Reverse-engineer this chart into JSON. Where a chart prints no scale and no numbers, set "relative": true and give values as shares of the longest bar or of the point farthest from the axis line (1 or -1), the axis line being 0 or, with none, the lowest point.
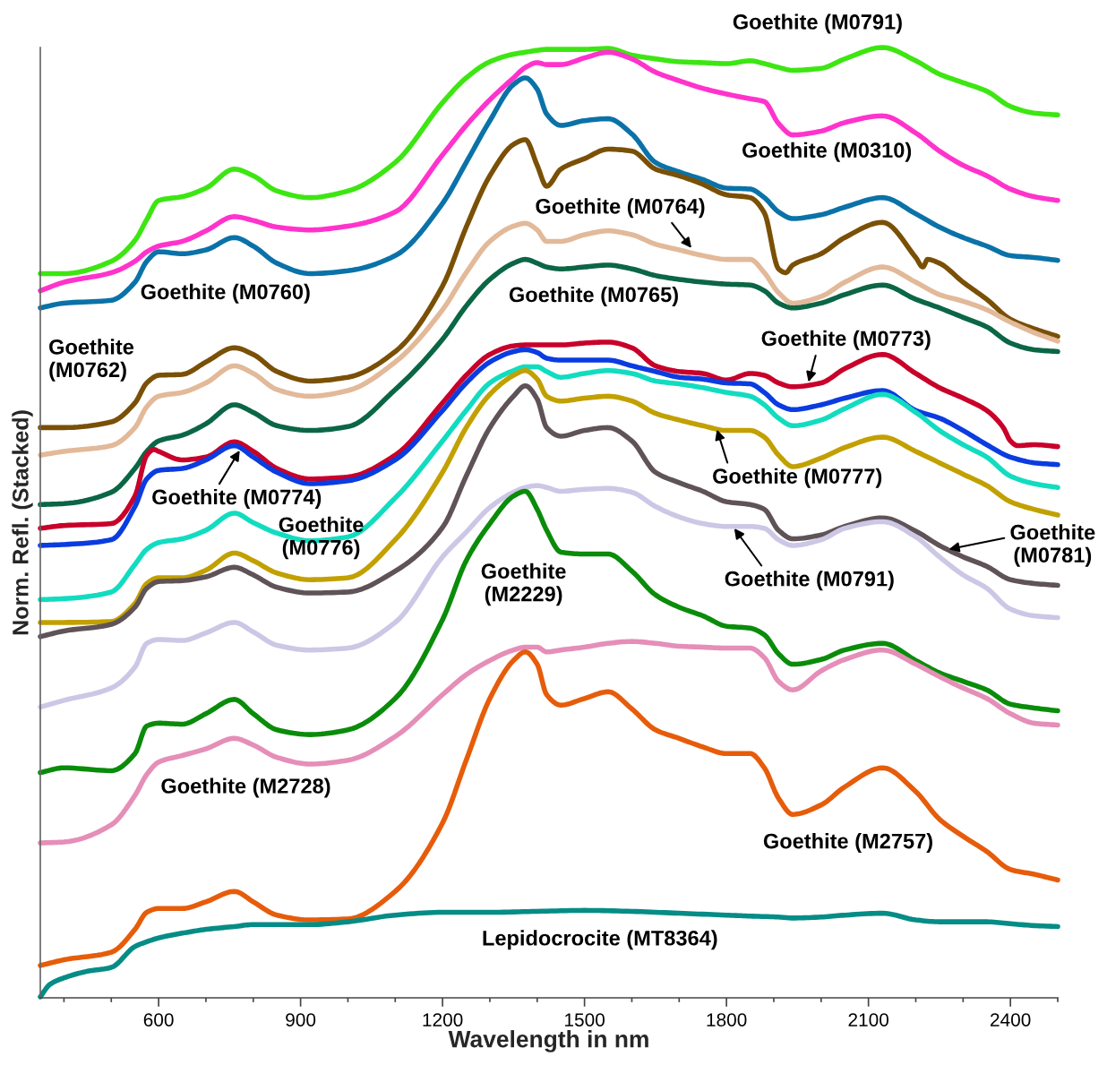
{
  "chart_data": {
    "type": "line",
    "xlabel": "Wavelength in nm",
    "ylabel": "Norm. Refl. (Stacked)",
    "relative": true,
    "xlim": [
      350,
      2500
    ],
    "xticks": [
      {
        "value": 400,
        "label": null
      },
      {
        "value": 500,
        "label": null
      },
      600,
      {
        "value": 700,
        "label": null
      },
      {
        "value": 800,
        "label": null
      },
      900,
      {
        "value": 1000,
        "label": null
      },
      {
        "value": 1100,
        "label": null
      },
      1200,
      {
        "value": 1300,
        "label": null
      },
      {
        "value": 1400,
        "label": null
      },
      1500,
      {
        "value": 1600,
        "label": null
      },
      {
        "value": 1700,
        "label": null
      },
      1800,
      {
        "value": 1900,
        "label": null
      },
      {
        "value": 2000,
        "label": null
      },
      2100,
      {
        "value": 2200,
        "label": null
      },
      {
        "value": 2300,
        "label": null
      },
      2400,
      {
        "value": 2500,
        "label": null
      }
    ],
    "series": [
      {
        "name": "Goethite (M0791)",
        "color": "#3de612",
        "x": [
          350,
          400,
          500,
          550,
          575,
          600,
          650,
          700,
          760,
          800,
          850,
          920,
          1000,
          1100,
          1200,
          1250,
          1300,
          1350,
          1375,
          1400,
          1420,
          1450,
          1500,
          1550,
          1600,
          1650,
          1700,
          1750,
          1800,
          1850,
          1880,
          1910,
          1940,
          2000,
          2050,
          2130,
          2200,
          2250,
          2300,
          2350,
          2400,
          2450,
          2500
        ],
        "values": [
          0.762,
          0.762,
          0.775,
          0.797,
          0.819,
          0.839,
          0.843,
          0.852,
          0.872,
          0.865,
          0.849,
          0.842,
          0.849,
          0.879,
          0.942,
          0.968,
          0.985,
          0.993,
          0.995,
          0.997,
          0.998,
          0.998,
          0.998,
          0.999,
          0.992,
          0.988,
          0.985,
          0.984,
          0.983,
          0.986,
          0.983,
          0.979,
          0.976,
          0.978,
          0.988,
          1.0,
          0.986,
          0.972,
          0.963,
          0.954,
          0.938,
          0.931,
          0.929
        ]
      },
      {
        "name": "Goethite (M0310)",
        "color": "#ff33cc",
        "x": [
          350,
          400,
          500,
          550,
          575,
          600,
          650,
          700,
          760,
          800,
          850,
          920,
          1000,
          1100,
          1200,
          1250,
          1300,
          1350,
          1375,
          1400,
          1420,
          1450,
          1500,
          1550,
          1600,
          1650,
          1700,
          1750,
          1800,
          1850,
          1880,
          1910,
          1940,
          2000,
          2050,
          2130,
          2200,
          2250,
          2300,
          2350,
          2400,
          2450,
          2500
        ],
        "values": [
          0.744,
          0.753,
          0.763,
          0.775,
          0.785,
          0.791,
          0.796,
          0.807,
          0.822,
          0.818,
          0.811,
          0.808,
          0.812,
          0.827,
          0.887,
          0.918,
          0.945,
          0.968,
          0.979,
          0.984,
          0.982,
          0.982,
          0.989,
          0.995,
          0.988,
          0.974,
          0.965,
          0.957,
          0.951,
          0.946,
          0.943,
          0.92,
          0.908,
          0.912,
          0.921,
          0.928,
          0.91,
          0.891,
          0.876,
          0.865,
          0.851,
          0.843,
          0.839
        ]
      },
      {
        "name": "Goethite (M0760)",
        "color": "#0a72a8",
        "x": [
          350,
          400,
          500,
          550,
          575,
          600,
          650,
          700,
          760,
          800,
          850,
          920,
          1000,
          1100,
          1200,
          1250,
          1300,
          1350,
          1375,
          1400,
          1420,
          1450,
          1500,
          1550,
          1600,
          1650,
          1700,
          1750,
          1800,
          1850,
          1880,
          1910,
          1940,
          2000,
          2050,
          2130,
          2200,
          2250,
          2300,
          2350,
          2400,
          2450,
          2500
        ],
        "values": [
          0.726,
          0.731,
          0.734,
          0.753,
          0.775,
          0.785,
          0.783,
          0.787,
          0.8,
          0.791,
          0.773,
          0.762,
          0.765,
          0.781,
          0.836,
          0.879,
          0.923,
          0.961,
          0.968,
          0.956,
          0.93,
          0.918,
          0.923,
          0.925,
          0.909,
          0.879,
          0.869,
          0.861,
          0.852,
          0.851,
          0.842,
          0.827,
          0.82,
          0.824,
          0.832,
          0.842,
          0.825,
          0.811,
          0.8,
          0.791,
          0.781,
          0.779,
          0.776
        ]
      },
      {
        "name": "Goethite (M0762)",
        "color": "#7a5006",
        "x": [
          350,
          400,
          500,
          550,
          575,
          600,
          650,
          700,
          760,
          800,
          850,
          920,
          1000,
          1100,
          1200,
          1250,
          1300,
          1350,
          1375,
          1400,
          1420,
          1450,
          1500,
          1550,
          1600,
          1650,
          1700,
          1750,
          1800,
          1850,
          1880,
          1910,
          1925,
          1940,
          2000,
          2050,
          2130,
          2200,
          2215,
          2225,
          2250,
          2300,
          2350,
          2400,
          2450,
          2500
        ],
        "values": [
          0.6,
          0.6,
          0.606,
          0.626,
          0.647,
          0.655,
          0.656,
          0.669,
          0.684,
          0.677,
          0.659,
          0.649,
          0.653,
          0.68,
          0.749,
          0.811,
          0.865,
          0.898,
          0.903,
          0.876,
          0.854,
          0.872,
          0.883,
          0.893,
          0.891,
          0.872,
          0.865,
          0.856,
          0.845,
          0.842,
          0.826,
          0.767,
          0.763,
          0.771,
          0.783,
          0.8,
          0.816,
          0.779,
          0.769,
          0.777,
          0.773,
          0.753,
          0.735,
          0.714,
          0.704,
          0.696
        ]
      },
      {
        "name": "Goethite (M0764)",
        "color": "#e2b999",
        "x": [
          350,
          400,
          500,
          550,
          575,
          600,
          650,
          700,
          760,
          800,
          850,
          920,
          1000,
          1100,
          1200,
          1250,
          1300,
          1350,
          1375,
          1400,
          1420,
          1450,
          1500,
          1550,
          1600,
          1650,
          1700,
          1750,
          1800,
          1850,
          1880,
          1910,
          1940,
          2000,
          2050,
          2130,
          2200,
          2250,
          2300,
          2350,
          2400,
          2450,
          2500
        ],
        "values": [
          0.571,
          0.575,
          0.581,
          0.6,
          0.622,
          0.633,
          0.637,
          0.647,
          0.665,
          0.657,
          0.64,
          0.633,
          0.639,
          0.669,
          0.724,
          0.763,
          0.796,
          0.812,
          0.815,
          0.808,
          0.796,
          0.796,
          0.803,
          0.807,
          0.803,
          0.793,
          0.787,
          0.781,
          0.777,
          0.777,
          0.763,
          0.742,
          0.731,
          0.738,
          0.753,
          0.769,
          0.753,
          0.74,
          0.733,
          0.724,
          0.711,
          0.7,
          0.691
        ]
      },
      {
        "name": "Goethite (M0765)",
        "color": "#0b6645",
        "x": [
          350,
          400,
          500,
          550,
          575,
          600,
          650,
          700,
          760,
          800,
          850,
          920,
          1000,
          1100,
          1200,
          1250,
          1300,
          1350,
          1375,
          1400,
          1420,
          1450,
          1500,
          1550,
          1600,
          1650,
          1700,
          1750,
          1800,
          1850,
          1880,
          1910,
          1940,
          2000,
          2050,
          2130,
          2200,
          2250,
          2300,
          2350,
          2400,
          2450,
          2500
        ],
        "values": [
          0.519,
          0.52,
          0.532,
          0.557,
          0.575,
          0.586,
          0.592,
          0.604,
          0.624,
          0.616,
          0.602,
          0.597,
          0.601,
          0.64,
          0.693,
          0.728,
          0.756,
          0.773,
          0.777,
          0.773,
          0.769,
          0.767,
          0.769,
          0.771,
          0.767,
          0.76,
          0.756,
          0.753,
          0.751,
          0.75,
          0.744,
          0.731,
          0.726,
          0.731,
          0.74,
          0.75,
          0.735,
          0.726,
          0.716,
          0.706,
          0.689,
          0.682,
          0.68
        ]
      },
      {
        "name": "Goethite (M0773)",
        "color": "#c8002a",
        "x": [
          350,
          400,
          500,
          550,
          575,
          590,
          600,
          650,
          700,
          760,
          800,
          850,
          920,
          1000,
          1100,
          1200,
          1250,
          1300,
          1350,
          1375,
          1400,
          1420,
          1450,
          1500,
          1550,
          1600,
          1650,
          1700,
          1750,
          1800,
          1850,
          1880,
          1910,
          1940,
          2000,
          2050,
          2130,
          2200,
          2250,
          2300,
          2350,
          2385,
          2400,
          2415,
          2450,
          2500
        ],
        "values": [
          0.494,
          0.497,
          0.499,
          0.528,
          0.571,
          0.577,
          0.575,
          0.566,
          0.569,
          0.585,
          0.575,
          0.557,
          0.546,
          0.548,
          0.571,
          0.626,
          0.655,
          0.677,
          0.686,
          0.687,
          0.687,
          0.687,
          0.687,
          0.689,
          0.69,
          0.684,
          0.665,
          0.659,
          0.657,
          0.65,
          0.657,
          0.655,
          0.647,
          0.643,
          0.647,
          0.662,
          0.677,
          0.657,
          0.642,
          0.631,
          0.618,
          0.6,
          0.586,
          0.581,
          0.582,
          0.58
        ]
      },
      {
        "name": "Goethite (M0774)",
        "color": "#0a3ce0",
        "x": [
          350,
          400,
          500,
          550,
          575,
          600,
          650,
          700,
          760,
          800,
          850,
          920,
          1000,
          1100,
          1200,
          1250,
          1300,
          1350,
          1375,
          1400,
          1420,
          1450,
          1500,
          1550,
          1600,
          1650,
          1700,
          1750,
          1800,
          1850,
          1880,
          1910,
          1940,
          2000,
          2050,
          2130,
          2200,
          2250,
          2300,
          2350,
          2400,
          2450,
          2500
        ],
        "values": [
          0.476,
          0.477,
          0.482,
          0.517,
          0.546,
          0.555,
          0.557,
          0.566,
          0.581,
          0.569,
          0.553,
          0.541,
          0.544,
          0.566,
          0.618,
          0.647,
          0.669,
          0.68,
          0.682,
          0.679,
          0.673,
          0.671,
          0.671,
          0.671,
          0.665,
          0.659,
          0.653,
          0.651,
          0.647,
          0.646,
          0.637,
          0.624,
          0.619,
          0.624,
          0.631,
          0.639,
          0.618,
          0.61,
          0.597,
          0.582,
          0.569,
          0.563,
          0.561
        ]
      },
      {
        "name": "Goethite (M0776)",
        "color": "#12dcc0",
        "x": [
          350,
          400,
          500,
          550,
          575,
          600,
          650,
          700,
          760,
          800,
          850,
          920,
          1000,
          1100,
          1200,
          1250,
          1300,
          1350,
          1375,
          1400,
          1420,
          1450,
          1500,
          1550,
          1600,
          1650,
          1700,
          1750,
          1800,
          1850,
          1880,
          1910,
          1940,
          2000,
          2050,
          2130,
          2200,
          2250,
          2300,
          2350,
          2400,
          2450,
          2500
        ],
        "values": [
          0.419,
          0.42,
          0.427,
          0.456,
          0.472,
          0.479,
          0.483,
          0.492,
          0.51,
          0.5,
          0.489,
          0.481,
          0.485,
          0.526,
          0.586,
          0.618,
          0.647,
          0.66,
          0.664,
          0.664,
          0.659,
          0.653,
          0.657,
          0.66,
          0.657,
          0.649,
          0.646,
          0.642,
          0.637,
          0.633,
          0.624,
          0.61,
          0.602,
          0.608,
          0.62,
          0.635,
          0.616,
          0.597,
          0.582,
          0.569,
          0.549,
          0.541,
          0.537
        ]
      },
      {
        "name": "Goethite (M0777)",
        "color": "#c2a000",
        "x": [
          350,
          400,
          500,
          550,
          575,
          600,
          650,
          700,
          760,
          800,
          850,
          920,
          1000,
          1100,
          1200,
          1250,
          1300,
          1350,
          1375,
          1400,
          1420,
          1450,
          1500,
          1550,
          1600,
          1650,
          1700,
          1750,
          1800,
          1850,
          1880,
          1910,
          1940,
          2000,
          2050,
          2130,
          2200,
          2250,
          2300,
          2350,
          2400,
          2450,
          2500
        ],
        "values": [
          0.395,
          0.395,
          0.396,
          0.415,
          0.436,
          0.442,
          0.442,
          0.45,
          0.468,
          0.46,
          0.447,
          0.44,
          0.442,
          0.482,
          0.553,
          0.6,
          0.635,
          0.655,
          0.66,
          0.651,
          0.633,
          0.628,
          0.631,
          0.633,
          0.628,
          0.615,
          0.608,
          0.602,
          0.597,
          0.597,
          0.59,
          0.571,
          0.559,
          0.568,
          0.579,
          0.59,
          0.575,
          0.563,
          0.551,
          0.539,
          0.522,
          0.514,
          0.508
        ]
      },
      {
        "name": "Goethite (M0781)",
        "color": "#5f5358",
        "x": [
          350,
          400,
          500,
          550,
          575,
          600,
          650,
          700,
          760,
          800,
          850,
          920,
          1000,
          1100,
          1200,
          1250,
          1300,
          1350,
          1375,
          1400,
          1420,
          1450,
          1500,
          1550,
          1600,
          1650,
          1700,
          1750,
          1800,
          1850,
          1880,
          1910,
          1940,
          2000,
          2050,
          2130,
          2200,
          2250,
          2300,
          2350,
          2400,
          2450,
          2500
        ],
        "values": [
          0.38,
          0.386,
          0.393,
          0.411,
          0.431,
          0.438,
          0.439,
          0.443,
          0.453,
          0.445,
          0.432,
          0.426,
          0.427,
          0.449,
          0.495,
          0.549,
          0.6,
          0.633,
          0.644,
          0.63,
          0.6,
          0.591,
          0.597,
          0.6,
          0.586,
          0.553,
          0.542,
          0.533,
          0.522,
          0.519,
          0.514,
          0.492,
          0.483,
          0.487,
          0.496,
          0.505,
          0.491,
          0.476,
          0.464,
          0.454,
          0.44,
          0.436,
          0.434
        ]
      },
      {
        "name": "Goethite (M0791)",
        "color": "#cdc7e6",
        "x": [
          350,
          400,
          500,
          550,
          575,
          600,
          650,
          700,
          760,
          800,
          850,
          920,
          1000,
          1100,
          1200,
          1250,
          1300,
          1350,
          1375,
          1400,
          1420,
          1450,
          1500,
          1550,
          1600,
          1650,
          1700,
          1750,
          1800,
          1850,
          1880,
          1910,
          1940,
          2000,
          2050,
          2130,
          2200,
          2250,
          2300,
          2350,
          2400,
          2450,
          2500
        ],
        "values": [
          0.306,
          0.313,
          0.326,
          0.348,
          0.373,
          0.377,
          0.376,
          0.384,
          0.395,
          0.385,
          0.371,
          0.366,
          0.368,
          0.395,
          0.464,
          0.49,
          0.516,
          0.532,
          0.537,
          0.539,
          0.537,
          0.533,
          0.535,
          0.536,
          0.532,
          0.517,
          0.506,
          0.499,
          0.496,
          0.496,
          0.494,
          0.482,
          0.476,
          0.482,
          0.494,
          0.501,
          0.485,
          0.464,
          0.445,
          0.431,
          0.409,
          0.402,
          0.4
        ]
      },
      {
        "name": "Goethite (M2229)",
        "color": "#0a8c0a",
        "x": [
          350,
          400,
          500,
          550,
          575,
          600,
          650,
          700,
          760,
          800,
          850,
          920,
          1000,
          1100,
          1200,
          1250,
          1300,
          1350,
          1375,
          1400,
          1420,
          1450,
          1500,
          1550,
          1600,
          1650,
          1700,
          1750,
          1800,
          1850,
          1880,
          1910,
          1940,
          2000,
          2050,
          2130,
          2200,
          2250,
          2300,
          2350,
          2400,
          2450,
          2500
        ],
        "values": [
          0.237,
          0.242,
          0.239,
          0.257,
          0.286,
          0.289,
          0.288,
          0.299,
          0.314,
          0.299,
          0.282,
          0.277,
          0.282,
          0.315,
          0.398,
          0.46,
          0.499,
          0.528,
          0.533,
          0.514,
          0.492,
          0.469,
          0.467,
          0.467,
          0.449,
          0.424,
          0.411,
          0.402,
          0.391,
          0.389,
          0.382,
          0.362,
          0.351,
          0.356,
          0.366,
          0.373,
          0.355,
          0.342,
          0.333,
          0.324,
          0.309,
          0.305,
          0.302
        ]
      },
      {
        "name": "Goethite (M2728)",
        "color": "#e58eb8",
        "x": [
          350,
          400,
          500,
          550,
          575,
          600,
          650,
          700,
          760,
          800,
          850,
          920,
          1000,
          1100,
          1200,
          1250,
          1300,
          1350,
          1375,
          1400,
          1420,
          1450,
          1500,
          1550,
          1600,
          1650,
          1700,
          1750,
          1800,
          1850,
          1880,
          1910,
          1940,
          2000,
          2050,
          2130,
          2200,
          2250,
          2300,
          2350,
          2400,
          2450,
          2500
        ],
        "values": [
          0.163,
          0.164,
          0.182,
          0.213,
          0.235,
          0.248,
          0.255,
          0.262,
          0.273,
          0.266,
          0.253,
          0.246,
          0.25,
          0.275,
          0.319,
          0.34,
          0.355,
          0.366,
          0.369,
          0.369,
          0.364,
          0.366,
          0.369,
          0.373,
          0.375,
          0.373,
          0.37,
          0.369,
          0.368,
          0.368,
          0.358,
          0.333,
          0.324,
          0.344,
          0.356,
          0.366,
          0.351,
          0.338,
          0.326,
          0.315,
          0.299,
          0.289,
          0.287
        ]
      },
      {
        "name": "Goethite (M2757)",
        "color": "#e65c0a",
        "x": [
          350,
          400,
          500,
          550,
          575,
          600,
          650,
          700,
          760,
          800,
          850,
          920,
          1000,
          1100,
          1200,
          1250,
          1300,
          1350,
          1375,
          1400,
          1420,
          1450,
          1500,
          1550,
          1600,
          1650,
          1700,
          1750,
          1800,
          1850,
          1880,
          1910,
          1940,
          2000,
          2050,
          2130,
          2200,
          2250,
          2300,
          2350,
          2400,
          2450,
          2500
        ],
        "values": [
          0.034,
          0.04,
          0.048,
          0.072,
          0.09,
          0.094,
          0.094,
          0.101,
          0.112,
          0.101,
          0.087,
          0.082,
          0.083,
          0.112,
          0.184,
          0.25,
          0.315,
          0.355,
          0.364,
          0.351,
          0.319,
          0.308,
          0.315,
          0.322,
          0.304,
          0.282,
          0.273,
          0.264,
          0.257,
          0.257,
          0.242,
          0.21,
          0.193,
          0.203,
          0.222,
          0.242,
          0.217,
          0.188,
          0.17,
          0.154,
          0.135,
          0.13,
          0.124
        ]
      },
      {
        "name": "Lepidocrocite (MT8364)",
        "color": "#058c86",
        "x": [
          350,
          370,
          400,
          450,
          500,
          550,
          575,
          600,
          650,
          700,
          760,
          800,
          850,
          920,
          1000,
          1100,
          1200,
          1300,
          1400,
          1500,
          1600,
          1700,
          1800,
          1850,
          1910,
          1940,
          2000,
          2050,
          2130,
          2200,
          2250,
          2300,
          2350,
          2400,
          2450,
          2500
        ],
        "values": [
          0.001,
          0.014,
          0.021,
          0.028,
          0.032,
          0.054,
          0.059,
          0.063,
          0.068,
          0.072,
          0.075,
          0.077,
          0.077,
          0.077,
          0.08,
          0.087,
          0.09,
          0.09,
          0.091,
          0.092,
          0.091,
          0.089,
          0.087,
          0.086,
          0.085,
          0.084,
          0.085,
          0.087,
          0.089,
          0.082,
          0.08,
          0.08,
          0.08,
          0.078,
          0.076,
          0.075
        ]
      }
    ]
  }
}
